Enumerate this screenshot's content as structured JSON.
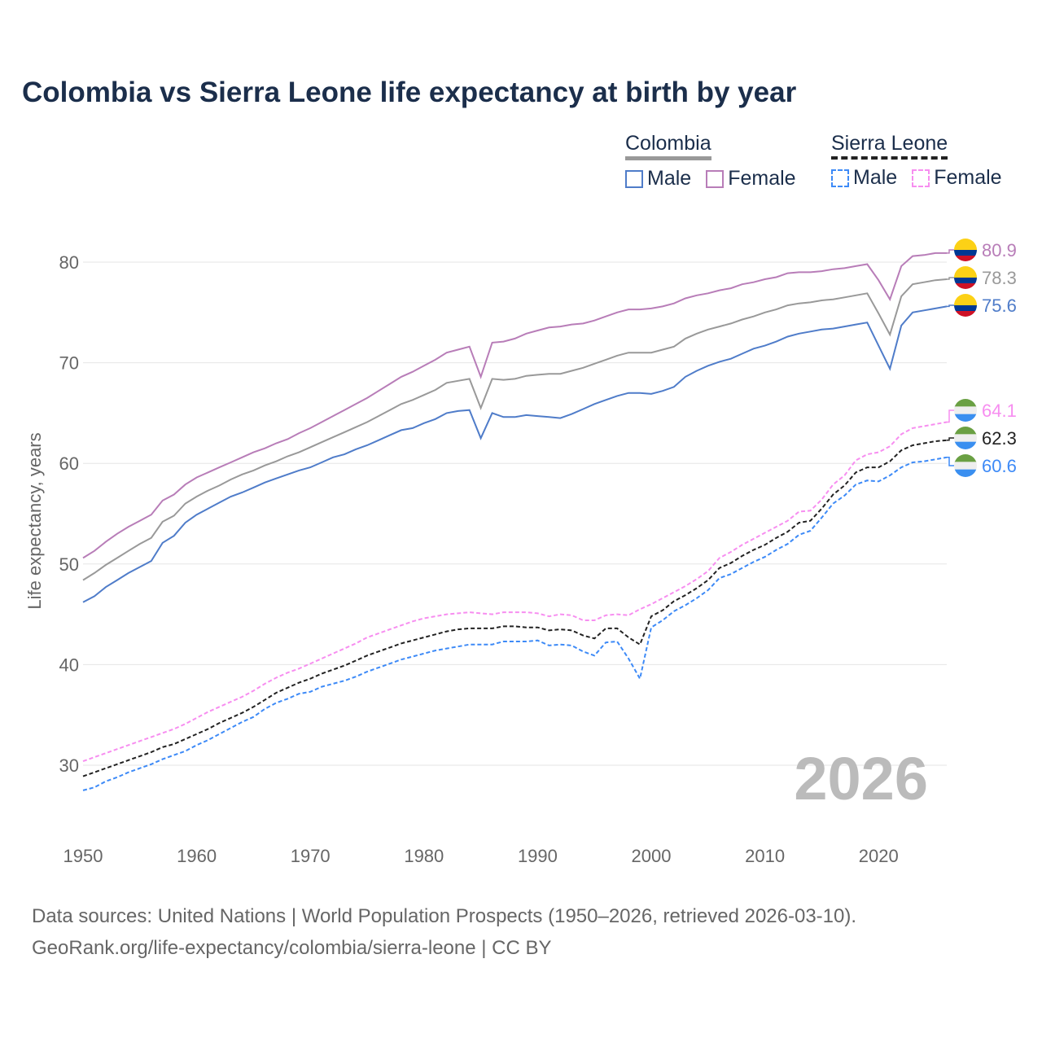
{
  "title": "Colombia vs Sierra Leone life expectancy at birth by year",
  "legend": {
    "groups": [
      {
        "name": "Colombia",
        "line_color": "#999999",
        "dashed": false,
        "items": [
          {
            "label": "Male",
            "color": "#4f7cc9"
          },
          {
            "label": "Female",
            "color": "#b87db8"
          }
        ]
      },
      {
        "name": "Sierra Leone",
        "line_color": "#222222",
        "dashed": true,
        "items": [
          {
            "label": "Male",
            "color": "#3d8af7"
          },
          {
            "label": "Female",
            "color": "#f78ef0"
          }
        ]
      }
    ]
  },
  "year_watermark": "2026",
  "footer": {
    "line1": "Data sources: United Nations | World Population Prospects (1950–2026, retrieved 2026-03-10).",
    "line2": "GeoRank.org/life-expectancy/colombia/sierra-leone | CC BY"
  },
  "chart_data": {
    "type": "line",
    "title": "Colombia vs Sierra Leone life expectancy at birth by year",
    "xlabel": "",
    "ylabel": "Life expectancy, years",
    "xlim": [
      1950,
      2026
    ],
    "ylim": [
      25,
      85
    ],
    "x_ticks": [
      "1950",
      "1960",
      "1970",
      "1980",
      "1990",
      "2000",
      "2010",
      "2020"
    ],
    "y_ticks": [
      "30",
      "40",
      "50",
      "60",
      "70",
      "80"
    ],
    "grid": true,
    "x_start": 1950,
    "series": [
      {
        "name": "Colombia Female",
        "country": "Colombia",
        "flag": "colombia",
        "color": "#b87db8",
        "dashed": false,
        "end_label": "80.9",
        "values": [
          50.6,
          51.3,
          52.2,
          53.0,
          53.7,
          54.3,
          54.9,
          56.3,
          56.9,
          57.9,
          58.6,
          59.1,
          59.6,
          60.1,
          60.6,
          61.1,
          61.5,
          62.0,
          62.4,
          63.0,
          63.5,
          64.1,
          64.7,
          65.3,
          65.9,
          66.5,
          67.2,
          67.9,
          68.6,
          69.1,
          69.7,
          70.3,
          71.0,
          71.3,
          71.6,
          68.6,
          72.0,
          72.1,
          72.4,
          72.9,
          73.2,
          73.5,
          73.6,
          73.8,
          73.9,
          74.2,
          74.6,
          75.0,
          75.3,
          75.3,
          75.4,
          75.6,
          75.9,
          76.4,
          76.7,
          76.9,
          77.2,
          77.4,
          77.8,
          78.0,
          78.3,
          78.5,
          78.9,
          79.0,
          79.0,
          79.1,
          79.3,
          79.4,
          79.6,
          79.8,
          78.2,
          76.3,
          79.6,
          80.6,
          80.7,
          80.9,
          80.9
        ]
      },
      {
        "name": "Colombia Total",
        "country": "Colombia",
        "flag": "colombia",
        "color": "#999999",
        "dashed": false,
        "end_label": "78.3",
        "values": [
          48.4,
          49.1,
          49.9,
          50.6,
          51.3,
          52.0,
          52.6,
          54.2,
          54.8,
          56.0,
          56.7,
          57.3,
          57.8,
          58.4,
          58.9,
          59.3,
          59.8,
          60.2,
          60.7,
          61.1,
          61.6,
          62.1,
          62.6,
          63.1,
          63.6,
          64.1,
          64.7,
          65.3,
          65.9,
          66.3,
          66.8,
          67.3,
          68.0,
          68.2,
          68.4,
          65.5,
          68.4,
          68.3,
          68.4,
          68.7,
          68.8,
          68.9,
          68.9,
          69.2,
          69.5,
          69.9,
          70.3,
          70.7,
          71.0,
          71.0,
          71.0,
          71.3,
          71.6,
          72.4,
          72.9,
          73.3,
          73.6,
          73.9,
          74.3,
          74.6,
          75.0,
          75.3,
          75.7,
          75.9,
          76.0,
          76.2,
          76.3,
          76.5,
          76.7,
          76.9,
          74.9,
          72.8,
          76.6,
          77.8,
          78.0,
          78.2,
          78.3
        ]
      },
      {
        "name": "Colombia Male",
        "country": "Colombia",
        "flag": "colombia",
        "color": "#4f7cc9",
        "dashed": false,
        "end_label": "75.6",
        "values": [
          46.2,
          46.8,
          47.7,
          48.4,
          49.1,
          49.7,
          50.3,
          52.1,
          52.8,
          54.1,
          54.9,
          55.5,
          56.1,
          56.7,
          57.1,
          57.6,
          58.1,
          58.5,
          58.9,
          59.3,
          59.6,
          60.1,
          60.6,
          60.9,
          61.4,
          61.8,
          62.3,
          62.8,
          63.3,
          63.5,
          64.0,
          64.4,
          65.0,
          65.2,
          65.3,
          62.5,
          65.0,
          64.6,
          64.6,
          64.8,
          64.7,
          64.6,
          64.5,
          64.9,
          65.4,
          65.9,
          66.3,
          66.7,
          67.0,
          67.0,
          66.9,
          67.2,
          67.6,
          68.6,
          69.2,
          69.7,
          70.1,
          70.4,
          70.9,
          71.4,
          71.7,
          72.1,
          72.6,
          72.9,
          73.1,
          73.3,
          73.4,
          73.6,
          73.8,
          74.0,
          71.7,
          69.4,
          73.7,
          75.0,
          75.2,
          75.4,
          75.6
        ]
      },
      {
        "name": "Sierra Leone Female",
        "country": "Sierra Leone",
        "flag": "sierra-leone",
        "color": "#f78ef0",
        "dashed": true,
        "end_label": "64.1",
        "values": [
          30.4,
          30.8,
          31.2,
          31.6,
          32.0,
          32.4,
          32.8,
          33.2,
          33.6,
          34.1,
          34.7,
          35.3,
          35.8,
          36.3,
          36.8,
          37.4,
          38.1,
          38.7,
          39.2,
          39.6,
          40.1,
          40.6,
          41.1,
          41.6,
          42.1,
          42.7,
          43.1,
          43.5,
          43.9,
          44.3,
          44.6,
          44.8,
          45.0,
          45.1,
          45.2,
          45.1,
          45.0,
          45.2,
          45.2,
          45.2,
          45.1,
          44.8,
          45.0,
          44.9,
          44.4,
          44.4,
          44.9,
          45.0,
          44.9,
          45.5,
          46.0,
          46.6,
          47.2,
          47.8,
          48.5,
          49.3,
          50.6,
          51.2,
          51.9,
          52.5,
          53.1,
          53.7,
          54.3,
          55.2,
          55.3,
          56.4,
          57.9,
          58.8,
          60.3,
          60.9,
          61.1,
          61.7,
          62.9,
          63.5,
          63.7,
          63.9,
          64.1
        ]
      },
      {
        "name": "Sierra Leone Total",
        "country": "Sierra Leone",
        "flag": "sierra-leone",
        "color": "#222222",
        "dashed": true,
        "end_label": "62.3",
        "values": [
          28.9,
          29.3,
          29.7,
          30.1,
          30.5,
          30.9,
          31.3,
          31.8,
          32.1,
          32.6,
          33.1,
          33.6,
          34.2,
          34.7,
          35.2,
          35.8,
          36.5,
          37.2,
          37.7,
          38.2,
          38.6,
          39.1,
          39.5,
          39.9,
          40.4,
          40.9,
          41.3,
          41.7,
          42.1,
          42.4,
          42.7,
          43.0,
          43.3,
          43.5,
          43.6,
          43.6,
          43.6,
          43.8,
          43.8,
          43.7,
          43.7,
          43.4,
          43.5,
          43.4,
          42.9,
          42.6,
          43.6,
          43.6,
          42.7,
          42.0,
          44.8,
          45.4,
          46.3,
          46.9,
          47.6,
          48.4,
          49.6,
          50.1,
          50.8,
          51.4,
          51.9,
          52.6,
          53.2,
          54.1,
          54.3,
          55.5,
          56.9,
          57.8,
          59.1,
          59.6,
          59.6,
          60.2,
          61.3,
          61.8,
          62.0,
          62.2,
          62.3
        ]
      },
      {
        "name": "Sierra Leone Male",
        "country": "Sierra Leone",
        "flag": "sierra-leone",
        "color": "#3d8af7",
        "dashed": true,
        "end_label": "60.6",
        "values": [
          27.5,
          27.8,
          28.4,
          28.8,
          29.3,
          29.7,
          30.1,
          30.6,
          31.0,
          31.4,
          32.0,
          32.5,
          33.1,
          33.7,
          34.3,
          34.8,
          35.6,
          36.2,
          36.6,
          37.1,
          37.3,
          37.8,
          38.1,
          38.4,
          38.8,
          39.3,
          39.7,
          40.1,
          40.5,
          40.8,
          41.1,
          41.4,
          41.6,
          41.8,
          42.0,
          42.0,
          42.0,
          42.3,
          42.3,
          42.3,
          42.4,
          41.9,
          42.0,
          41.9,
          41.3,
          40.9,
          42.2,
          42.3,
          40.6,
          38.6,
          43.7,
          44.4,
          45.3,
          45.9,
          46.6,
          47.4,
          48.6,
          49.0,
          49.6,
          50.2,
          50.7,
          51.4,
          52.0,
          52.9,
          53.3,
          54.6,
          56.0,
          56.8,
          57.9,
          58.3,
          58.2,
          58.8,
          59.6,
          60.1,
          60.2,
          60.4,
          60.6
        ]
      }
    ]
  }
}
